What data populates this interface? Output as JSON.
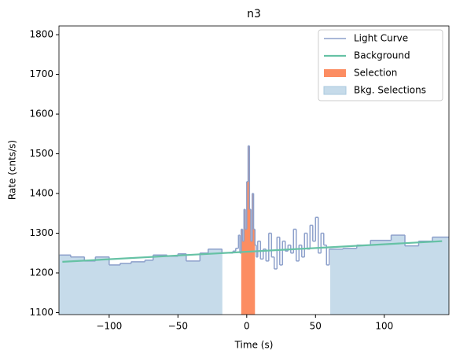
{
  "chart_data": {
    "type": "step",
    "title": "n3",
    "xlabel": "Time (s)",
    "ylabel": "Rate (cnts/s)",
    "xlim": [
      -136.5,
      147
    ],
    "ylim": [
      1095,
      1822
    ],
    "xticks": [
      {
        "value": -100,
        "label": "−100"
      },
      {
        "value": -50,
        "label": "−50"
      },
      0,
      50,
      100
    ],
    "yticks": [
      1100,
      1200,
      1300,
      1400,
      1500,
      1600,
      1700,
      1800
    ],
    "legend": "upper right",
    "light_curve": {
      "name": "Light Curve",
      "color": "#8da0cb",
      "bins": [
        -136,
        -128,
        -118,
        -110,
        -100,
        -92,
        -84,
        -74,
        -68,
        -58,
        -50,
        -44,
        -34,
        -28,
        -18,
        -10,
        -8,
        -6,
        -5,
        -4,
        -3,
        -2,
        -1,
        0,
        1,
        2,
        3,
        4,
        5,
        6,
        7,
        8,
        10,
        12,
        14,
        16,
        18,
        20,
        22,
        24,
        26,
        28,
        30,
        32,
        34,
        36,
        38,
        40,
        42,
        44,
        46,
        48,
        50,
        52,
        54,
        56,
        58,
        60,
        70,
        80,
        90,
        105,
        115,
        125,
        135,
        147
      ],
      "values": [
        1245,
        1240,
        1230,
        1240,
        1220,
        1224,
        1228,
        1232,
        1245,
        1242,
        1248,
        1230,
        1250,
        1260,
        1250,
        1255,
        1262,
        1295,
        1250,
        1310,
        1280,
        1360,
        1310,
        1430,
        1520,
        1360,
        1280,
        1400,
        1310,
        1270,
        1240,
        1280,
        1235,
        1260,
        1230,
        1300,
        1240,
        1210,
        1290,
        1220,
        1280,
        1255,
        1270,
        1250,
        1310,
        1230,
        1270,
        1240,
        1300,
        1260,
        1320,
        1280,
        1340,
        1250,
        1300,
        1270,
        1220,
        1260,
        1262,
        1270,
        1282,
        1295,
        1268,
        1280,
        1290
      ]
    },
    "background": {
      "name": "Background",
      "color": "#66c2a5",
      "x": [
        -134,
        142
      ],
      "values": [
        1228,
        1280
      ]
    },
    "selection": {
      "name": "Selection",
      "color": "#fc8d62",
      "range": [
        -4,
        6
      ]
    },
    "bkg_selections": {
      "name": "Bkg. Selections",
      "color": "#c6dbea",
      "ranges": [
        [
          -136,
          -18
        ],
        [
          61,
          147
        ]
      ]
    }
  }
}
